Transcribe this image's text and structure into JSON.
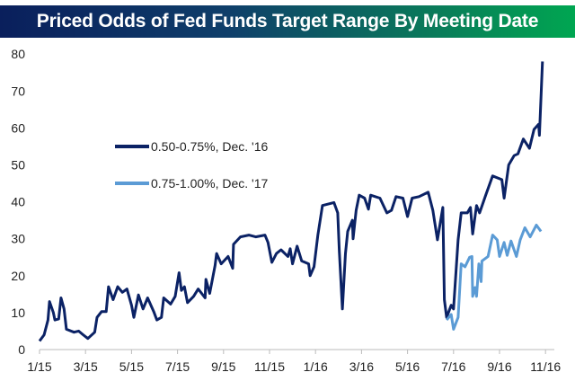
{
  "chart_data": {
    "type": "line",
    "title": "Priced Odds of Fed Funds Target Range By Meeting Date",
    "xlabel": "",
    "ylabel": "",
    "ylim": [
      0,
      80
    ],
    "yticks": [
      0,
      10,
      20,
      30,
      40,
      50,
      60,
      70,
      80
    ],
    "xticks": [
      {
        "date": "2015-01-01",
        "label": "1/15"
      },
      {
        "date": "2015-03-01",
        "label": "3/15"
      },
      {
        "date": "2015-05-01",
        "label": "5/15"
      },
      {
        "date": "2015-07-01",
        "label": "7/15"
      },
      {
        "date": "2015-09-01",
        "label": "9/15"
      },
      {
        "date": "2015-11-01",
        "label": "11/15"
      },
      {
        "date": "2016-01-01",
        "label": "1/16"
      },
      {
        "date": "2016-03-01",
        "label": "3/16"
      },
      {
        "date": "2016-05-01",
        "label": "5/16"
      },
      {
        "date": "2016-07-01",
        "label": "7/16"
      },
      {
        "date": "2016-09-01",
        "label": "9/16"
      },
      {
        "date": "2016-11-01",
        "label": "11/16"
      }
    ],
    "grid": false,
    "legend_position": "left-middle",
    "series": [
      {
        "name": "0.50-0.75%, Dec. '16",
        "color": "#0b2265",
        "points": [
          [
            "2015-01-01",
            2.3
          ],
          [
            "2015-01-07",
            4
          ],
          [
            "2015-01-12",
            8
          ],
          [
            "2015-01-14",
            13
          ],
          [
            "2015-01-19",
            10
          ],
          [
            "2015-01-21",
            8
          ],
          [
            "2015-01-26",
            8.3
          ],
          [
            "2015-01-29",
            14
          ],
          [
            "2015-02-03",
            11
          ],
          [
            "2015-02-06",
            5.5
          ],
          [
            "2015-02-16",
            4.7
          ],
          [
            "2015-02-22",
            5
          ],
          [
            "2015-02-28",
            4
          ],
          [
            "2015-03-04",
            3
          ],
          [
            "2015-03-13",
            4.7
          ],
          [
            "2015-03-16",
            8.7
          ],
          [
            "2015-03-22",
            10.3
          ],
          [
            "2015-03-28",
            10.3
          ],
          [
            "2015-04-01",
            17
          ],
          [
            "2015-04-07",
            13.5
          ],
          [
            "2015-04-13",
            17
          ],
          [
            "2015-04-19",
            15.5
          ],
          [
            "2015-04-25",
            16.4
          ],
          [
            "2015-05-01",
            12
          ],
          [
            "2015-05-04",
            8.7
          ],
          [
            "2015-05-10",
            14.8
          ],
          [
            "2015-05-16",
            11
          ],
          [
            "2015-05-22",
            14
          ],
          [
            "2015-05-30",
            10.3
          ],
          [
            "2015-06-04",
            8
          ],
          [
            "2015-06-10",
            8.7
          ],
          [
            "2015-06-13",
            14
          ],
          [
            "2015-06-22",
            12.3
          ],
          [
            "2015-06-28",
            14.4
          ],
          [
            "2015-07-03",
            20.8
          ],
          [
            "2015-07-06",
            16
          ],
          [
            "2015-07-10",
            17
          ],
          [
            "2015-07-14",
            12.7
          ],
          [
            "2015-07-22",
            14.4
          ],
          [
            "2015-07-28",
            16.4
          ],
          [
            "2015-08-07",
            14
          ],
          [
            "2015-08-08",
            19
          ],
          [
            "2015-08-13",
            15.2
          ],
          [
            "2015-08-20",
            22.8
          ],
          [
            "2015-08-22",
            26
          ],
          [
            "2015-08-28",
            23.2
          ],
          [
            "2015-09-07",
            25.2
          ],
          [
            "2015-09-13",
            22
          ],
          [
            "2015-09-14",
            28.5
          ],
          [
            "2015-09-23",
            30.5
          ],
          [
            "2015-10-04",
            31
          ],
          [
            "2015-10-13",
            30.5
          ],
          [
            "2015-10-25",
            31
          ],
          [
            "2015-10-29",
            29
          ],
          [
            "2015-11-04",
            23.6
          ],
          [
            "2015-11-10",
            26
          ],
          [
            "2015-11-16",
            27
          ],
          [
            "2015-11-25",
            25.2
          ],
          [
            "2015-11-28",
            27.3
          ],
          [
            "2015-12-01",
            23.2
          ],
          [
            "2015-12-07",
            28
          ],
          [
            "2015-12-13",
            24
          ],
          [
            "2015-12-22",
            23.2
          ],
          [
            "2015-12-24",
            20
          ],
          [
            "2015-12-29",
            22.4
          ],
          [
            "2016-01-04",
            31
          ],
          [
            "2016-01-10",
            39
          ],
          [
            "2016-01-25",
            39.8
          ],
          [
            "2016-01-30",
            37
          ],
          [
            "2016-02-02",
            26.5
          ],
          [
            "2016-02-06",
            11
          ],
          [
            "2016-02-10",
            26
          ],
          [
            "2016-02-13",
            32
          ],
          [
            "2016-02-19",
            35
          ],
          [
            "2016-02-20",
            30
          ],
          [
            "2016-02-24",
            37.7
          ],
          [
            "2016-02-28",
            41.8
          ],
          [
            "2016-03-05",
            41
          ],
          [
            "2016-03-10",
            38
          ],
          [
            "2016-03-13",
            41.8
          ],
          [
            "2016-03-25",
            41
          ],
          [
            "2016-04-04",
            37
          ],
          [
            "2016-04-10",
            37.7
          ],
          [
            "2016-04-16",
            41.4
          ],
          [
            "2016-04-25",
            41
          ],
          [
            "2016-05-01",
            36
          ],
          [
            "2016-05-07",
            41
          ],
          [
            "2016-05-16",
            41.4
          ],
          [
            "2016-05-28",
            42.6
          ],
          [
            "2016-06-04",
            37.7
          ],
          [
            "2016-06-10",
            29.7
          ],
          [
            "2016-06-17",
            38.5
          ],
          [
            "2016-06-19",
            13.5
          ],
          [
            "2016-06-22",
            8.7
          ],
          [
            "2016-06-28",
            12
          ],
          [
            "2016-07-01",
            11
          ],
          [
            "2016-07-07",
            29.7
          ],
          [
            "2016-07-11",
            37
          ],
          [
            "2016-07-19",
            37
          ],
          [
            "2016-07-23",
            38.5
          ],
          [
            "2016-07-26",
            31.3
          ],
          [
            "2016-08-01",
            39
          ],
          [
            "2016-08-05",
            37
          ],
          [
            "2016-08-13",
            41.8
          ],
          [
            "2016-08-22",
            47
          ],
          [
            "2016-09-04",
            46
          ],
          [
            "2016-09-07",
            41
          ],
          [
            "2016-09-13",
            50
          ],
          [
            "2016-09-20",
            52.5
          ],
          [
            "2016-09-25",
            53
          ],
          [
            "2016-10-02",
            57
          ],
          [
            "2016-10-10",
            54.5
          ],
          [
            "2016-10-16",
            59.6
          ],
          [
            "2016-10-22",
            61
          ],
          [
            "2016-10-23",
            58
          ],
          [
            "2016-10-27",
            78
          ]
        ]
      },
      {
        "name": "0.75-1.00%, Dec. '17",
        "color": "#5b9bd5",
        "points": [
          [
            "2016-06-22",
            8
          ],
          [
            "2016-06-28",
            9.5
          ],
          [
            "2016-07-01",
            5.5
          ],
          [
            "2016-07-07",
            8.7
          ],
          [
            "2016-07-11",
            23.2
          ],
          [
            "2016-07-16",
            22.4
          ],
          [
            "2016-07-22",
            25
          ],
          [
            "2016-07-25",
            25.2
          ],
          [
            "2016-07-26",
            14.4
          ],
          [
            "2016-07-29",
            16.8
          ],
          [
            "2016-08-01",
            14.4
          ],
          [
            "2016-08-04",
            23.2
          ],
          [
            "2016-08-07",
            18.4
          ],
          [
            "2016-08-08",
            24
          ],
          [
            "2016-08-16",
            25.2
          ],
          [
            "2016-08-22",
            31
          ],
          [
            "2016-08-28",
            29.7
          ],
          [
            "2016-09-01",
            25.2
          ],
          [
            "2016-09-07",
            29
          ],
          [
            "2016-09-11",
            25.5
          ],
          [
            "2016-09-16",
            29.4
          ],
          [
            "2016-09-23",
            25.2
          ],
          [
            "2016-09-28",
            29.7
          ],
          [
            "2016-10-04",
            33
          ],
          [
            "2016-10-11",
            30.5
          ],
          [
            "2016-10-19",
            33.7
          ],
          [
            "2016-10-25",
            32
          ]
        ]
      }
    ]
  }
}
